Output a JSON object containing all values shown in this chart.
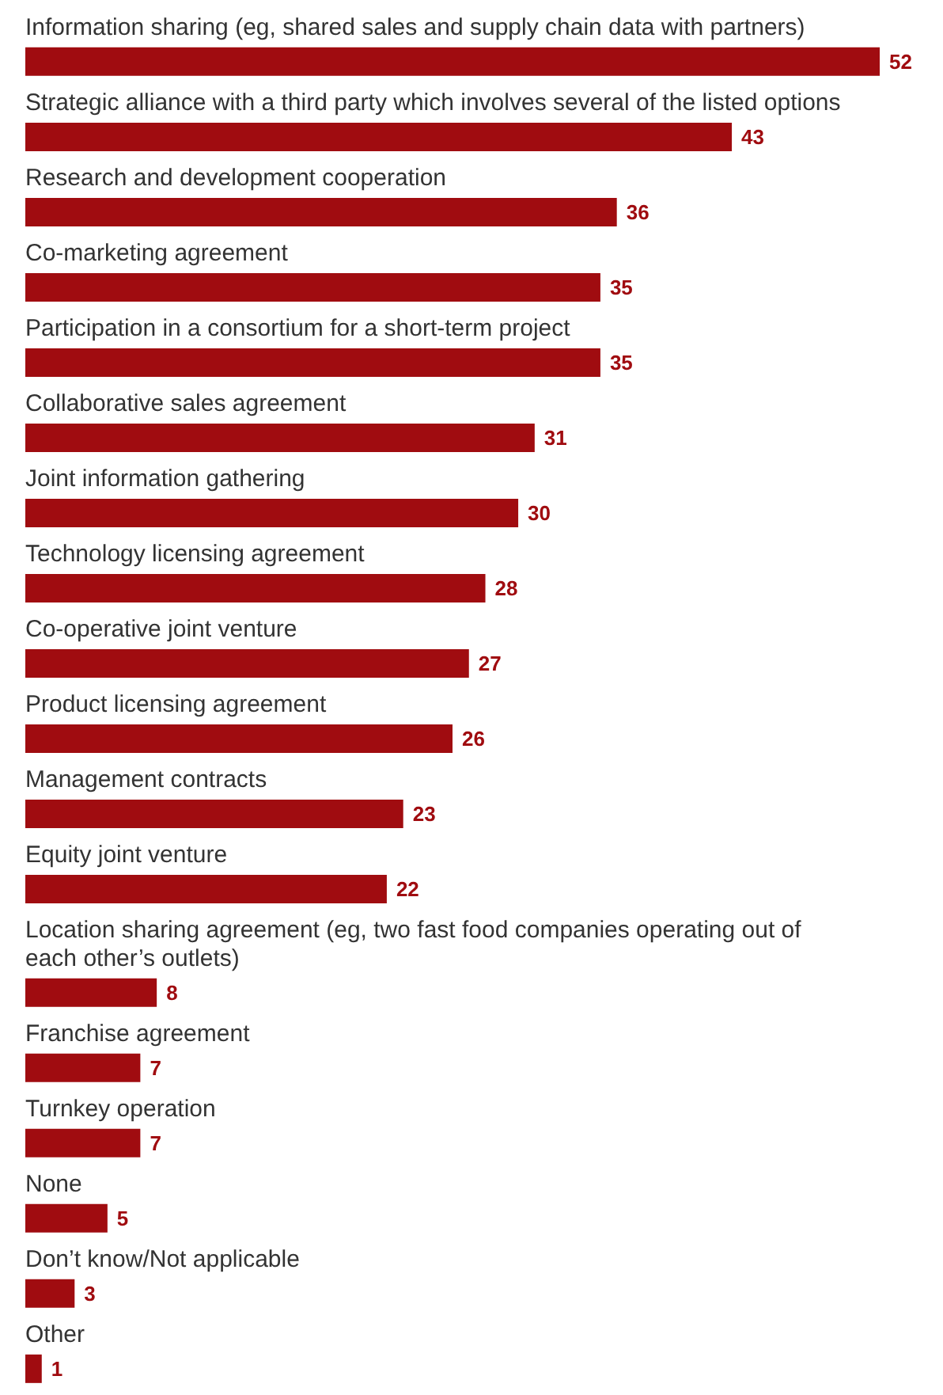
{
  "chart_data": {
    "type": "bar",
    "orientation": "horizontal",
    "data_labels": true,
    "color": "#a00c10",
    "categories": [
      "Information sharing (eg, shared sales and supply chain data with partners)",
      "Strategic alliance with a third party which involves several of the listed options",
      "Research and development cooperation",
      "Co-marketing agreement",
      "Participation in a consortium for a short-term project",
      "Collaborative sales agreement",
      "Joint information gathering",
      "Technology licensing agreement",
      "Co-operative joint venture",
      "Product licensing agreement",
      "Management contracts",
      "Equity joint venture",
      "Location sharing agreement (eg, two fast food companies operating out of each other’s outlets)",
      "Franchise agreement",
      "Turnkey operation",
      "None",
      "Don’t know/Not applicable",
      "Other"
    ],
    "values": [
      52,
      43,
      36,
      35,
      35,
      31,
      30,
      28,
      27,
      26,
      23,
      22,
      8,
      7,
      7,
      5,
      3,
      1
    ]
  }
}
